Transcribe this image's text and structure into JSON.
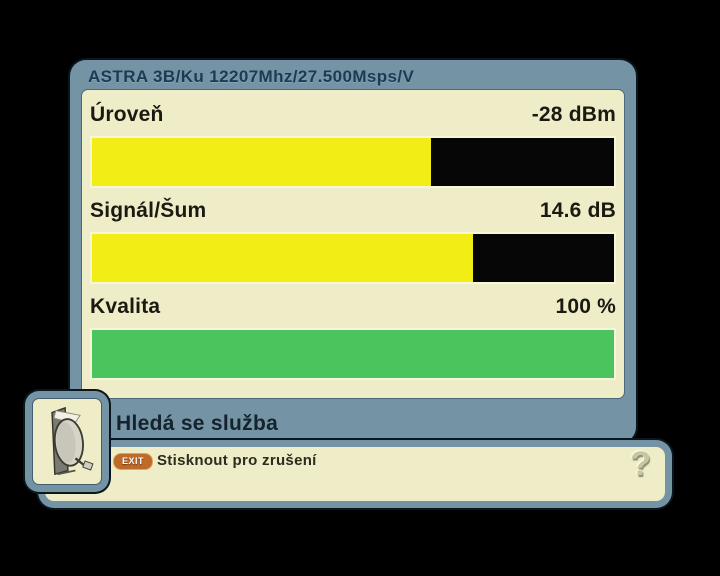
{
  "window": {
    "title": "ASTRA 3B/Ku 12207Mhz/27.500Msps/V"
  },
  "meters": [
    {
      "label": "Úroveň",
      "value": "-28 dBm",
      "percent": 65,
      "fill_color": "#f2ee15",
      "track_color": "#060606"
    },
    {
      "label": "Signál/Šum",
      "value": "14.6 dB",
      "percent": 73,
      "fill_color": "#f2ee15",
      "track_color": "#060606"
    },
    {
      "label": "Kvalita",
      "value": "100 %",
      "percent": 100,
      "fill_color": "#4cc45e",
      "track_color": "#060606"
    }
  ],
  "status": {
    "message": "Hledá se služba"
  },
  "hint_bar": {
    "key_label": "EXIT",
    "text": "Stisknout pro zrušení",
    "help_icon": "?"
  },
  "icons": {
    "bottom_left": "satellite-dish-icon",
    "help": "question-mark-icon"
  },
  "colors": {
    "background": "#000000",
    "frame": "#7494a5",
    "panel": "#efedc8",
    "bar_track": "#060606",
    "signal_fill": "#f2ee15",
    "quality_fill": "#4cc45e",
    "title_text": "#1d3a55",
    "status_text": "#14232d",
    "exit_badge_bg": "#bd6a2b",
    "exit_badge_text": "#ffffff"
  },
  "chart_data": {
    "type": "bar",
    "categories": [
      "Úroveň",
      "Signál/Šum",
      "Kvalita"
    ],
    "values": [
      65,
      73,
      100
    ],
    "value_labels": [
      "-28 dBm",
      "14.6 dB",
      "100 %"
    ],
    "title": "ASTRA 3B/Ku 12207Mhz/27.500Msps/V",
    "xlabel": "",
    "ylabel": "",
    "ylim": [
      0,
      100
    ]
  }
}
